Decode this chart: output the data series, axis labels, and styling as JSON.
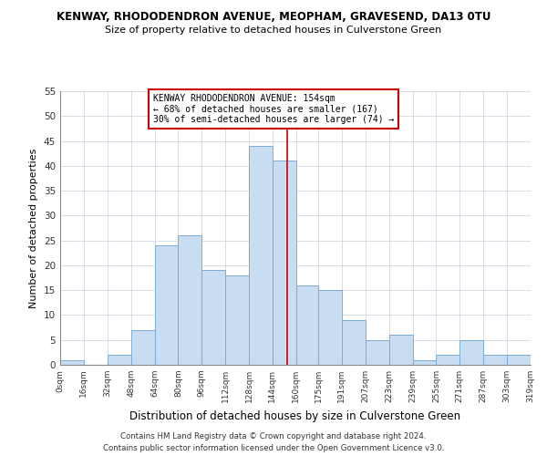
{
  "title": "KENWAY, RHODODENDRON AVENUE, MEOPHAM, GRAVESEND, DA13 0TU",
  "subtitle": "Size of property relative to detached houses in Culverstone Green",
  "xlabel": "Distribution of detached houses by size in Culverstone Green",
  "ylabel": "Number of detached properties",
  "footnote1": "Contains HM Land Registry data © Crown copyright and database right 2024.",
  "footnote2": "Contains public sector information licensed under the Open Government Licence v3.0.",
  "bar_edges": [
    0,
    16,
    32,
    48,
    64,
    80,
    96,
    112,
    128,
    144,
    160,
    175,
    191,
    207,
    223,
    239,
    255,
    271,
    287,
    303,
    319
  ],
  "bar_heights": [
    1,
    0,
    2,
    7,
    24,
    26,
    19,
    18,
    44,
    41,
    16,
    15,
    9,
    5,
    6,
    1,
    2,
    5,
    2,
    2
  ],
  "bar_color": "#c9ddf2",
  "bar_edgecolor": "#7bacd4",
  "xlim": [
    0,
    319
  ],
  "ylim": [
    0,
    55
  ],
  "yticks": [
    0,
    5,
    10,
    15,
    20,
    25,
    30,
    35,
    40,
    45,
    50,
    55
  ],
  "xtick_labels": [
    "0sqm",
    "16sqm",
    "32sqm",
    "48sqm",
    "64sqm",
    "80sqm",
    "96sqm",
    "112sqm",
    "128sqm",
    "144sqm",
    "160sqm",
    "175sqm",
    "191sqm",
    "207sqm",
    "223sqm",
    "239sqm",
    "255sqm",
    "271sqm",
    "287sqm",
    "303sqm",
    "319sqm"
  ],
  "xtick_positions": [
    0,
    16,
    32,
    48,
    64,
    80,
    96,
    112,
    128,
    144,
    160,
    175,
    191,
    207,
    223,
    239,
    255,
    271,
    287,
    303,
    319
  ],
  "vline_x": 154,
  "vline_color": "#cc0000",
  "annotation_title": "KENWAY RHODODENDRON AVENUE: 154sqm",
  "annotation_line1": "← 68% of detached houses are smaller (167)",
  "annotation_line2": "30% of semi-detached houses are larger (74) →",
  "background_color": "#ffffff",
  "grid_color": "#d0d8e4",
  "title_fontsize": 8.5,
  "subtitle_fontsize": 8.0
}
